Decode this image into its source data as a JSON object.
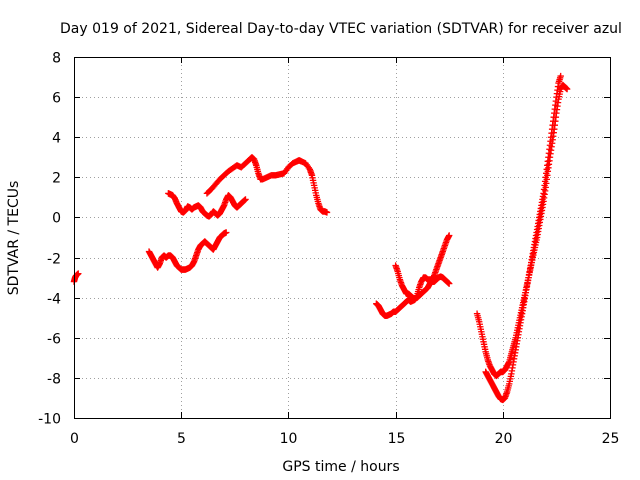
{
  "chart_data": {
    "type": "scatter",
    "title": "Day 019 of 2021, Sidereal Day-to-day VTEC variation (SDTVAR) for receiver azul",
    "xlabel": "GPS time / hours",
    "ylabel": "SDTVAR / TECUs",
    "xlim": [
      0,
      25
    ],
    "ylim": [
      -10,
      8
    ],
    "xticks": [
      "0",
      "5",
      "10",
      "15",
      "20",
      "25"
    ],
    "yticks": [
      "-10",
      "-8",
      "-6",
      "-4",
      "-2",
      "0",
      "2",
      "4",
      "6",
      "8"
    ],
    "grid": true,
    "marker": "plus",
    "color": "#ff0000",
    "series": [
      {
        "points": [
          [
            0.0,
            -3.2
          ],
          [
            0.05,
            -3.0
          ],
          [
            0.1,
            -2.9
          ],
          [
            0.2,
            -2.8
          ]
        ]
      },
      {
        "points": [
          [
            3.5,
            -1.7
          ],
          [
            3.6,
            -1.9
          ],
          [
            3.7,
            -2.1
          ],
          [
            3.8,
            -2.3
          ],
          [
            3.9,
            -2.5
          ],
          [
            4.0,
            -2.3
          ],
          [
            4.1,
            -2.0
          ],
          [
            4.2,
            -1.9
          ],
          [
            4.3,
            -2.0
          ],
          [
            4.4,
            -1.9
          ],
          [
            4.5,
            -1.9
          ],
          [
            4.6,
            -2.0
          ],
          [
            4.7,
            -2.2
          ],
          [
            4.8,
            -2.4
          ],
          [
            4.9,
            -2.5
          ],
          [
            5.0,
            -2.6
          ],
          [
            5.1,
            -2.6
          ],
          [
            5.2,
            -2.6
          ],
          [
            5.3,
            -2.55
          ],
          [
            5.4,
            -2.5
          ],
          [
            5.5,
            -2.4
          ],
          [
            5.6,
            -2.2
          ],
          [
            5.7,
            -1.9
          ],
          [
            5.8,
            -1.6
          ],
          [
            5.9,
            -1.4
          ],
          [
            6.0,
            -1.3
          ],
          [
            6.1,
            -1.2
          ],
          [
            6.2,
            -1.3
          ],
          [
            6.3,
            -1.4
          ],
          [
            6.4,
            -1.5
          ],
          [
            6.5,
            -1.6
          ],
          [
            6.6,
            -1.4
          ],
          [
            6.7,
            -1.2
          ],
          [
            6.8,
            -1.0
          ],
          [
            6.9,
            -0.9
          ],
          [
            7.0,
            -0.8
          ],
          [
            7.1,
            -0.75
          ]
        ]
      },
      {
        "points": [
          [
            4.4,
            1.2
          ],
          [
            4.5,
            1.15
          ],
          [
            4.6,
            1.1
          ],
          [
            4.7,
            0.95
          ],
          [
            4.8,
            0.7
          ],
          [
            4.9,
            0.5
          ],
          [
            5.0,
            0.3
          ],
          [
            5.1,
            0.25
          ],
          [
            5.2,
            0.35
          ],
          [
            5.3,
            0.55
          ],
          [
            5.4,
            0.5
          ],
          [
            5.5,
            0.4
          ],
          [
            5.6,
            0.5
          ],
          [
            5.7,
            0.55
          ],
          [
            5.8,
            0.6
          ],
          [
            5.9,
            0.5
          ],
          [
            6.0,
            0.3
          ],
          [
            6.1,
            0.2
          ],
          [
            6.2,
            0.1
          ],
          [
            6.3,
            0.05
          ],
          [
            6.4,
            0.15
          ],
          [
            6.5,
            0.3
          ],
          [
            6.6,
            0.2
          ],
          [
            6.7,
            0.1
          ],
          [
            6.8,
            0.2
          ],
          [
            6.9,
            0.4
          ],
          [
            7.0,
            0.6
          ],
          [
            7.1,
            0.9
          ],
          [
            7.2,
            1.1
          ],
          [
            7.3,
            1.0
          ],
          [
            7.4,
            0.8
          ],
          [
            7.5,
            0.6
          ],
          [
            7.6,
            0.5
          ],
          [
            7.7,
            0.6
          ],
          [
            7.8,
            0.7
          ],
          [
            7.9,
            0.8
          ],
          [
            8.0,
            0.9
          ]
        ]
      },
      {
        "points": [
          [
            6.2,
            1.2
          ],
          [
            6.4,
            1.4
          ],
          [
            6.6,
            1.65
          ],
          [
            6.8,
            1.9
          ],
          [
            7.0,
            2.1
          ],
          [
            7.2,
            2.3
          ],
          [
            7.4,
            2.45
          ],
          [
            7.6,
            2.6
          ],
          [
            7.8,
            2.5
          ],
          [
            8.0,
            2.7
          ],
          [
            8.2,
            2.9
          ],
          [
            8.3,
            3.0
          ],
          [
            8.4,
            2.9
          ],
          [
            8.5,
            2.6
          ],
          [
            8.6,
            2.2
          ],
          [
            8.7,
            1.9
          ],
          [
            8.8,
            1.9
          ],
          [
            9.0,
            2.0
          ],
          [
            9.2,
            2.1
          ],
          [
            9.4,
            2.1
          ],
          [
            9.6,
            2.15
          ],
          [
            9.8,
            2.2
          ],
          [
            10.0,
            2.5
          ],
          [
            10.2,
            2.7
          ],
          [
            10.4,
            2.8
          ],
          [
            10.5,
            2.85
          ],
          [
            10.6,
            2.8
          ],
          [
            10.8,
            2.7
          ],
          [
            11.0,
            2.4
          ],
          [
            11.1,
            2.1
          ],
          [
            11.2,
            1.6
          ],
          [
            11.3,
            1.1
          ],
          [
            11.4,
            0.7
          ],
          [
            11.5,
            0.4
          ],
          [
            11.6,
            0.3
          ],
          [
            11.7,
            0.3
          ],
          [
            11.8,
            0.25
          ]
        ]
      },
      {
        "points": [
          [
            14.1,
            -4.3
          ],
          [
            14.2,
            -4.4
          ],
          [
            14.3,
            -4.6
          ],
          [
            14.4,
            -4.8
          ],
          [
            14.5,
            -4.9
          ],
          [
            14.6,
            -4.9
          ],
          [
            14.7,
            -4.85
          ],
          [
            14.8,
            -4.8
          ],
          [
            14.9,
            -4.7
          ],
          [
            15.0,
            -4.7
          ],
          [
            15.1,
            -4.6
          ],
          [
            15.2,
            -4.5
          ],
          [
            15.3,
            -4.4
          ],
          [
            15.4,
            -4.3
          ],
          [
            15.5,
            -4.2
          ],
          [
            15.6,
            -4.1
          ],
          [
            15.7,
            -4.2
          ],
          [
            15.8,
            -4.15
          ],
          [
            15.9,
            -4.1
          ],
          [
            16.0,
            -3.9
          ],
          [
            16.1,
            -3.5
          ],
          [
            16.2,
            -3.2
          ],
          [
            16.3,
            -3.0
          ],
          [
            16.4,
            -3.0
          ],
          [
            16.5,
            -3.1
          ],
          [
            16.6,
            -3.1
          ],
          [
            16.7,
            -3.2
          ],
          [
            16.8,
            -3.2
          ],
          [
            16.9,
            -3.1
          ],
          [
            17.0,
            -3.0
          ],
          [
            17.1,
            -2.95
          ],
          [
            17.2,
            -3.0
          ],
          [
            17.3,
            -3.1
          ],
          [
            17.4,
            -3.2
          ],
          [
            17.5,
            -3.3
          ]
        ]
      },
      {
        "points": [
          [
            15.0,
            -2.4
          ],
          [
            15.1,
            -2.7
          ],
          [
            15.2,
            -3.1
          ],
          [
            15.3,
            -3.4
          ],
          [
            15.4,
            -3.6
          ],
          [
            15.5,
            -3.8
          ],
          [
            15.6,
            -3.8
          ],
          [
            15.7,
            -3.9
          ],
          [
            15.8,
            -4.0
          ],
          [
            15.9,
            -4.05
          ],
          [
            16.0,
            -4.0
          ],
          [
            16.1,
            -3.9
          ],
          [
            16.2,
            -3.8
          ],
          [
            16.3,
            -3.7
          ],
          [
            16.4,
            -3.6
          ],
          [
            16.5,
            -3.5
          ],
          [
            16.6,
            -3.3
          ],
          [
            16.7,
            -3.1
          ],
          [
            16.8,
            -2.9
          ],
          [
            16.9,
            -2.6
          ],
          [
            17.0,
            -2.3
          ],
          [
            17.1,
            -2.0
          ],
          [
            17.2,
            -1.7
          ],
          [
            17.3,
            -1.4
          ],
          [
            17.4,
            -1.1
          ],
          [
            17.5,
            -0.9
          ]
        ]
      },
      {
        "points": [
          [
            18.8,
            -4.8
          ],
          [
            18.9,
            -5.2
          ],
          [
            19.0,
            -5.7
          ],
          [
            19.1,
            -6.2
          ],
          [
            19.2,
            -6.7
          ],
          [
            19.3,
            -7.1
          ],
          [
            19.4,
            -7.4
          ],
          [
            19.5,
            -7.6
          ],
          [
            19.6,
            -7.8
          ],
          [
            19.7,
            -7.9
          ],
          [
            19.8,
            -7.8
          ],
          [
            19.9,
            -7.7
          ],
          [
            20.0,
            -7.7
          ],
          [
            20.1,
            -7.6
          ],
          [
            20.2,
            -7.4
          ],
          [
            20.3,
            -7.2
          ],
          [
            20.4,
            -6.8
          ],
          [
            20.5,
            -6.4
          ],
          [
            20.6,
            -6.0
          ],
          [
            20.7,
            -5.5
          ],
          [
            20.8,
            -5.0
          ],
          [
            20.9,
            -4.5
          ],
          [
            21.0,
            -4.0
          ],
          [
            21.1,
            -3.5
          ],
          [
            21.2,
            -3.0
          ],
          [
            21.3,
            -2.5
          ],
          [
            21.4,
            -2.0
          ],
          [
            21.5,
            -1.5
          ],
          [
            21.6,
            -1.0
          ],
          [
            21.7,
            -0.4
          ],
          [
            21.8,
            0.2
          ],
          [
            21.9,
            0.8
          ],
          [
            22.0,
            1.5
          ],
          [
            22.1,
            2.3
          ],
          [
            22.2,
            3.0
          ],
          [
            22.3,
            3.7
          ],
          [
            22.4,
            4.4
          ],
          [
            22.5,
            5.2
          ],
          [
            22.6,
            5.9
          ],
          [
            22.7,
            6.4
          ],
          [
            22.8,
            6.6
          ],
          [
            22.9,
            6.5
          ],
          [
            23.0,
            6.4
          ]
        ]
      },
      {
        "points": [
          [
            19.2,
            -7.7
          ],
          [
            19.3,
            -7.9
          ],
          [
            19.4,
            -8.1
          ],
          [
            19.5,
            -8.3
          ],
          [
            19.6,
            -8.5
          ],
          [
            19.7,
            -8.7
          ],
          [
            19.8,
            -8.9
          ],
          [
            19.9,
            -9.05
          ],
          [
            20.0,
            -9.1
          ],
          [
            20.1,
            -9.0
          ],
          [
            20.2,
            -8.7
          ],
          [
            20.3,
            -8.3
          ],
          [
            20.4,
            -7.8
          ],
          [
            20.5,
            -7.2
          ],
          [
            20.6,
            -6.6
          ],
          [
            20.7,
            -6.0
          ],
          [
            20.8,
            -5.4
          ],
          [
            20.9,
            -4.8
          ],
          [
            21.0,
            -4.2
          ],
          [
            21.1,
            -3.6
          ],
          [
            21.2,
            -3.0
          ],
          [
            21.3,
            -2.4
          ],
          [
            21.4,
            -1.8
          ],
          [
            21.5,
            -1.2
          ],
          [
            21.6,
            -0.6
          ],
          [
            21.7,
            0.0
          ],
          [
            21.8,
            0.6
          ],
          [
            21.9,
            1.2
          ],
          [
            22.0,
            2.0
          ],
          [
            22.1,
            2.8
          ],
          [
            22.2,
            3.6
          ],
          [
            22.3,
            4.4
          ],
          [
            22.4,
            5.2
          ],
          [
            22.5,
            6.0
          ],
          [
            22.6,
            6.7
          ],
          [
            22.7,
            7.05
          ]
        ]
      }
    ]
  }
}
